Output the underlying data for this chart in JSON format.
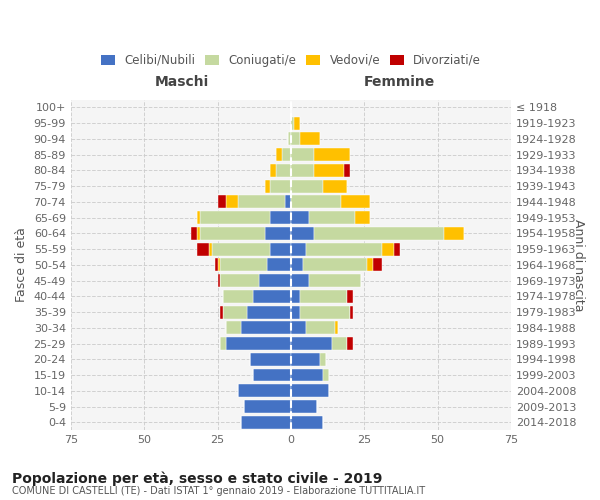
{
  "age_groups": [
    "100+",
    "95-99",
    "90-94",
    "85-89",
    "80-84",
    "75-79",
    "70-74",
    "65-69",
    "60-64",
    "55-59",
    "50-54",
    "45-49",
    "40-44",
    "35-39",
    "30-34",
    "25-29",
    "20-24",
    "15-19",
    "10-14",
    "5-9",
    "0-4"
  ],
  "birth_years": [
    "≤ 1918",
    "1919-1923",
    "1924-1928",
    "1929-1933",
    "1934-1938",
    "1939-1943",
    "1944-1948",
    "1949-1953",
    "1954-1958",
    "1959-1963",
    "1964-1968",
    "1969-1973",
    "1974-1978",
    "1979-1983",
    "1984-1988",
    "1989-1993",
    "1994-1998",
    "1999-2003",
    "2004-2008",
    "2009-2013",
    "2014-2018"
  ],
  "maschi": {
    "celibi": [
      0,
      0,
      0,
      0,
      0,
      0,
      2,
      7,
      9,
      7,
      8,
      11,
      13,
      15,
      17,
      22,
      14,
      13,
      18,
      16,
      17
    ],
    "coniugati": [
      0,
      0,
      1,
      3,
      5,
      7,
      16,
      24,
      22,
      20,
      16,
      13,
      10,
      8,
      5,
      2,
      0,
      0,
      0,
      0,
      0
    ],
    "vedovi": [
      0,
      0,
      0,
      2,
      2,
      2,
      4,
      1,
      1,
      1,
      1,
      0,
      0,
      0,
      0,
      0,
      0,
      0,
      0,
      0,
      0
    ],
    "divorziati": [
      0,
      0,
      0,
      0,
      0,
      0,
      3,
      0,
      2,
      4,
      1,
      1,
      0,
      1,
      0,
      0,
      0,
      0,
      0,
      0,
      0
    ]
  },
  "femmine": {
    "celibi": [
      0,
      0,
      0,
      0,
      0,
      0,
      0,
      6,
      8,
      5,
      4,
      6,
      3,
      3,
      5,
      14,
      10,
      11,
      13,
      9,
      11
    ],
    "coniugati": [
      0,
      1,
      3,
      8,
      8,
      11,
      17,
      16,
      44,
      26,
      22,
      18,
      16,
      17,
      10,
      5,
      2,
      2,
      0,
      0,
      0
    ],
    "vedovi": [
      0,
      2,
      7,
      12,
      10,
      8,
      10,
      5,
      7,
      4,
      2,
      0,
      0,
      0,
      1,
      0,
      0,
      0,
      0,
      0,
      0
    ],
    "divorziati": [
      0,
      0,
      0,
      0,
      2,
      0,
      0,
      0,
      0,
      2,
      3,
      0,
      2,
      1,
      0,
      2,
      0,
      0,
      0,
      0,
      0
    ]
  },
  "color_celibi": "#4472c4",
  "color_coniugati": "#c5d9a0",
  "color_vedovi": "#ffc000",
  "color_divorziati": "#c00000",
  "title": "Popolazione per età, sesso e stato civile - 2019",
  "subtitle": "COMUNE DI CASTELLI (TE) - Dati ISTAT 1° gennaio 2019 - Elaborazione TUTTITALIA.IT",
  "xlabel_maschi": "Maschi",
  "xlabel_femmine": "Femmine",
  "ylabel": "Fasce di età",
  "ylabel_right": "Anni di nascita",
  "xlim": 75,
  "background_color": "#f5f5f5",
  "grid_color": "#cccccc"
}
